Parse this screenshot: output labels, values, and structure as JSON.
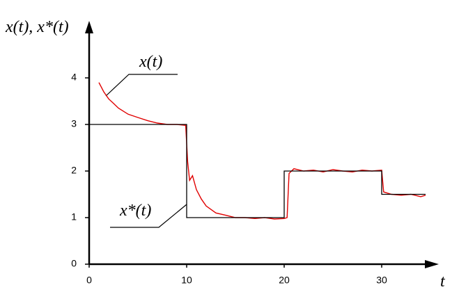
{
  "chart_data": {
    "type": "line",
    "y_label": "x(t), x*(t)",
    "x_label": "t",
    "annotations": [
      "x(t)",
      "x*(t)"
    ],
    "xlim": [
      0,
      35.5
    ],
    "ylim": [
      0,
      5.15
    ],
    "xticks": [
      0,
      10,
      20,
      30
    ],
    "yticks": [
      0,
      1,
      2,
      3,
      4
    ],
    "grid": false,
    "series": [
      {
        "name": "x(t)",
        "color": "#e00000",
        "x": [
          1,
          1.5,
          2,
          2.5,
          3,
          4,
          5,
          6,
          7,
          8,
          9,
          9.9,
          10.1,
          10.3,
          10.6,
          11,
          11.5,
          12,
          13,
          14,
          15,
          16,
          17,
          18,
          19,
          20,
          20.3,
          20.5,
          21,
          22,
          23,
          24,
          25,
          26,
          27,
          28,
          29,
          30,
          30.2,
          31,
          32,
          33,
          34,
          34.5
        ],
        "values": [
          3.9,
          3.7,
          3.55,
          3.45,
          3.35,
          3.22,
          3.15,
          3.08,
          3.03,
          3.0,
          3.0,
          2.98,
          2.2,
          1.8,
          1.9,
          1.6,
          1.4,
          1.25,
          1.1,
          1.05,
          1.0,
          1.0,
          0.98,
          1.0,
          0.97,
          0.98,
          1.0,
          1.95,
          2.05,
          2.0,
          2.02,
          1.98,
          2.03,
          2.0,
          1.98,
          2.02,
          2.0,
          2.02,
          1.55,
          1.5,
          1.48,
          1.5,
          1.45,
          1.48
        ]
      },
      {
        "name": "x*(t)",
        "color": "#000000",
        "x": [
          0,
          10,
          10,
          20,
          20,
          30,
          30,
          34.5
        ],
        "values": [
          3,
          3,
          1,
          1,
          2,
          2,
          1.5,
          1.5
        ]
      }
    ]
  }
}
